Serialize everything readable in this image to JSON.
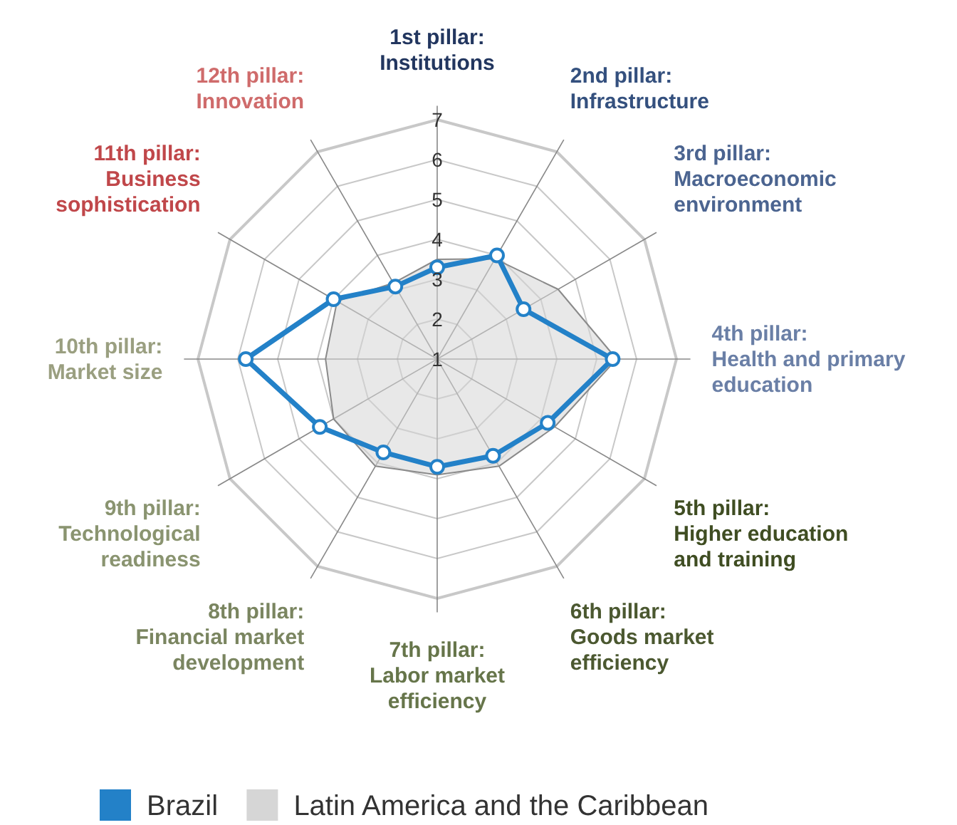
{
  "chart_data": {
    "type": "radar",
    "categories": [
      "1st pillar:\nInstitutions",
      "2nd pillar:\nInfrastructure",
      "3rd pillar:\nMacroeconomic\nenvironment",
      "4th pillar:\nHealth and primary\neducation",
      "5th pillar:\nHigher education\nand training",
      "6th pillar:\nGoods market\nefficiency",
      "7th pillar:\nLabor market\nefficiency",
      "8th pillar:\nFinancial market\ndevelopment",
      "9th pillar:\nTechnological\nreadiness",
      "10th pillar:\nMarket size",
      "11th pillar:\nBusiness\nsophistication",
      "12th pillar:\nInnovation"
    ],
    "series": [
      {
        "name": "Latin America and the Caribbean",
        "color": "#d6d6d6",
        "type": "area",
        "marker": "none",
        "values": [
          3.5,
          3.9,
          4.5,
          5.5,
          4.4,
          4.1,
          3.9,
          4.1,
          4.0,
          3.8,
          3.9,
          3.2
        ]
      },
      {
        "name": "Brazil",
        "color": "#2381c8",
        "marker": "circle",
        "values": [
          3.3,
          4.0,
          3.5,
          5.4,
          4.2,
          3.8,
          3.7,
          3.7,
          4.4,
          5.8,
          4.0,
          3.1
        ]
      }
    ],
    "ylim": [
      1,
      7
    ],
    "yticks": [
      1,
      2,
      3,
      4,
      5,
      6,
      7
    ],
    "grid": true,
    "legend": "bottom"
  }
}
